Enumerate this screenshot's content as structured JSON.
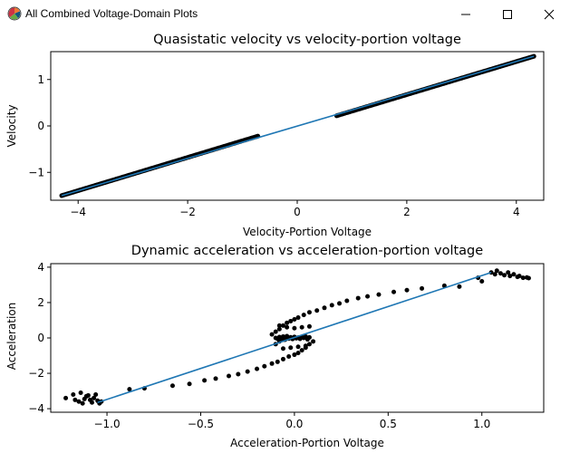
{
  "window": {
    "title": "All Combined Voltage-Domain Plots",
    "controls": {
      "minimize": "minimize",
      "maximize": "maximize",
      "close": "close"
    }
  },
  "chart_data": [
    {
      "type": "scatter",
      "title": "Quasistatic velocity vs velocity-portion voltage",
      "xlabel": "Velocity-Portion Voltage",
      "ylabel": "Velocity",
      "xlim": [
        -4.5,
        4.5
      ],
      "ylim": [
        -1.6,
        1.6
      ],
      "xticks": [
        -4,
        -2,
        0,
        2,
        4
      ],
      "xtick_labels": [
        "−4",
        "−2",
        "0",
        "2",
        "4"
      ],
      "yticks": [
        -1,
        0,
        1
      ],
      "ytick_labels": [
        "−1",
        "0",
        "1"
      ],
      "grid": false,
      "series": [
        {
          "kind": "scatter",
          "color": "#000000",
          "segments": [
            {
              "x_start": -4.3,
              "y_start": -1.5,
              "x_end": -0.72,
              "y_end": -0.22
            },
            {
              "x_start": 0.72,
              "y_start": 0.22,
              "x_end": 4.32,
              "y_end": 1.5
            }
          ]
        },
        {
          "kind": "line",
          "color": "#1f77b4",
          "x": [
            -4.3,
            4.32
          ],
          "y": [
            -1.5,
            1.5
          ]
        }
      ]
    },
    {
      "type": "scatter",
      "title": "Dynamic acceleration vs acceleration-portion voltage",
      "xlabel": "Acceleration-Portion Voltage",
      "ylabel": "Acceleration",
      "xlim": [
        -1.3,
        1.33
      ],
      "ylim": [
        -4.2,
        4.2
      ],
      "xticks": [
        -1.0,
        -0.5,
        0.0,
        0.5,
        1.0
      ],
      "xtick_labels": [
        "−1.0",
        "−0.5",
        "0.0",
        "0.5",
        "1.0"
      ],
      "yticks": [
        -4,
        -2,
        0,
        2,
        4
      ],
      "ytick_labels": [
        "−4",
        "−2",
        "0",
        "2",
        "4"
      ],
      "grid": false,
      "series": [
        {
          "kind": "scatter",
          "color": "#000000",
          "points": [
            [
              -1.22,
              -3.4
            ],
            [
              -1.18,
              -3.2
            ],
            [
              -1.17,
              -3.5
            ],
            [
              -1.15,
              -3.6
            ],
            [
              -1.14,
              -3.1
            ],
            [
              -1.13,
              -3.7
            ],
            [
              -1.12,
              -3.45
            ],
            [
              -1.11,
              -3.3
            ],
            [
              -1.1,
              -3.25
            ],
            [
              -1.09,
              -3.5
            ],
            [
              -1.08,
              -3.65
            ],
            [
              -1.07,
              -3.4
            ],
            [
              -1.06,
              -3.2
            ],
            [
              -1.05,
              -3.55
            ],
            [
              -1.04,
              -3.7
            ],
            [
              -1.03,
              -3.6
            ],
            [
              -0.88,
              -2.9
            ],
            [
              -0.8,
              -2.85
            ],
            [
              -0.65,
              -2.7
            ],
            [
              -0.56,
              -2.6
            ],
            [
              -0.48,
              -2.4
            ],
            [
              -0.42,
              -2.3
            ],
            [
              -0.35,
              -2.15
            ],
            [
              -0.3,
              -2.05
            ],
            [
              -0.25,
              -1.9
            ],
            [
              -0.2,
              -1.75
            ],
            [
              -0.16,
              -1.6
            ],
            [
              -0.12,
              -1.45
            ],
            [
              -0.09,
              -1.35
            ],
            [
              -0.06,
              -1.2
            ],
            [
              -0.03,
              -1.05
            ],
            [
              0.0,
              -0.95
            ],
            [
              0.02,
              -0.85
            ],
            [
              0.04,
              -0.7
            ],
            [
              0.06,
              -0.55
            ],
            [
              0.08,
              -0.35
            ],
            [
              0.1,
              -0.2
            ],
            [
              -0.1,
              -0.35
            ],
            [
              -0.08,
              -0.2
            ],
            [
              -0.06,
              -0.1
            ],
            [
              -0.12,
              0.2
            ],
            [
              -0.1,
              0.35
            ],
            [
              -0.08,
              0.5
            ],
            [
              -0.06,
              0.7
            ],
            [
              -0.04,
              0.85
            ],
            [
              -0.02,
              0.95
            ],
            [
              0.0,
              1.05
            ],
            [
              0.02,
              1.15
            ],
            [
              0.05,
              1.3
            ],
            [
              0.08,
              1.45
            ],
            [
              0.12,
              1.55
            ],
            [
              0.16,
              1.7
            ],
            [
              0.2,
              1.85
            ],
            [
              0.24,
              1.95
            ],
            [
              0.28,
              2.1
            ],
            [
              0.34,
              2.25
            ],
            [
              0.39,
              2.35
            ],
            [
              0.45,
              2.45
            ],
            [
              0.53,
              2.6
            ],
            [
              0.6,
              2.7
            ],
            [
              0.68,
              2.8
            ],
            [
              0.8,
              2.95
            ],
            [
              0.88,
              2.9
            ],
            [
              1.0,
              3.2
            ],
            [
              -0.1,
              0.0
            ],
            [
              -0.09,
              -0.05
            ],
            [
              -0.08,
              0.05
            ],
            [
              -0.07,
              -0.08
            ],
            [
              -0.06,
              0.08
            ],
            [
              -0.05,
              -0.1
            ],
            [
              -0.04,
              0.1
            ],
            [
              -0.03,
              -0.04
            ],
            [
              -0.02,
              0.04
            ],
            [
              -0.01,
              -0.06
            ],
            [
              0.0,
              0.06
            ],
            [
              0.01,
              -0.02
            ],
            [
              0.02,
              0.02
            ],
            [
              0.03,
              -0.05
            ],
            [
              0.04,
              0.05
            ],
            [
              0.05,
              0.0
            ],
            [
              0.06,
              0.08
            ],
            [
              0.07,
              -0.08
            ],
            [
              0.08,
              0.03
            ],
            [
              -0.08,
              0.7
            ],
            [
              -0.04,
              0.6
            ],
            [
              0.0,
              0.55
            ],
            [
              0.04,
              0.6
            ],
            [
              0.08,
              0.65
            ],
            [
              -0.06,
              -0.6
            ],
            [
              -0.02,
              -0.55
            ],
            [
              0.02,
              -0.5
            ],
            [
              0.06,
              -0.45
            ],
            [
              1.05,
              3.7
            ],
            [
              1.07,
              3.6
            ],
            [
              1.08,
              3.8
            ],
            [
              1.1,
              3.65
            ],
            [
              1.12,
              3.55
            ],
            [
              1.14,
              3.7
            ],
            [
              1.15,
              3.5
            ],
            [
              1.17,
              3.6
            ],
            [
              1.19,
              3.45
            ],
            [
              1.2,
              3.5
            ],
            [
              1.22,
              3.4
            ],
            [
              1.24,
              3.42
            ],
            [
              1.25,
              3.38
            ],
            [
              0.98,
              3.4
            ]
          ]
        },
        {
          "kind": "line",
          "color": "#1f77b4",
          "x": [
            -1.05,
            1.05
          ],
          "y": [
            -3.65,
            3.7
          ]
        }
      ]
    }
  ]
}
